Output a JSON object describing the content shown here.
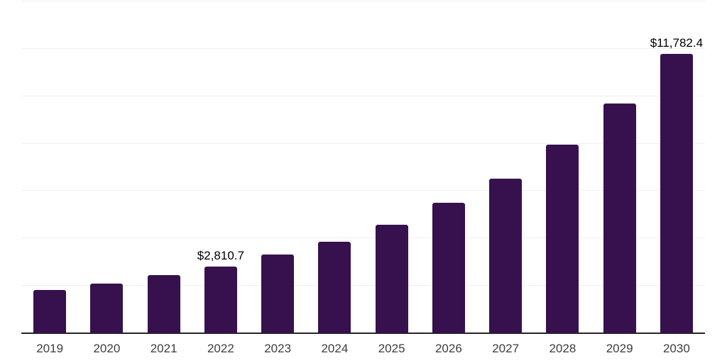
{
  "chart_data": {
    "type": "bar",
    "title": "",
    "xlabel": "",
    "ylabel": "",
    "categories": [
      "2019",
      "2020",
      "2021",
      "2022",
      "2023",
      "2024",
      "2025",
      "2026",
      "2027",
      "2028",
      "2029",
      "2030"
    ],
    "values": [
      1820,
      2090,
      2440,
      2810.7,
      3310,
      3870,
      4590,
      5510,
      6530,
      7960,
      9690,
      11782.4
    ],
    "data_labels": {
      "2022": "$2,810.7",
      "2030": "$11,782.4"
    },
    "ylim": [
      0,
      14000
    ],
    "gridline_interval": 2000,
    "grid": "horizontal",
    "legend": "none",
    "bar_color": "#36114D",
    "axis_color": "#262626",
    "gridline_color": "#efefef",
    "tick_label_color": "#3d3d3d",
    "value_label_color": "#000000"
  }
}
